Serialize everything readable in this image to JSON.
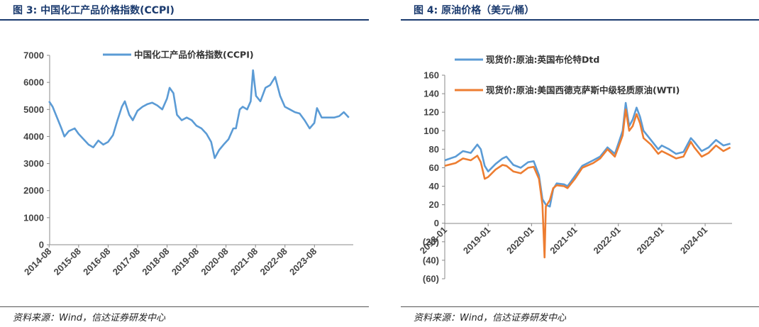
{
  "left_panel": {
    "figure_title": "图 3:  中国化工产品价格指数(CCPI)",
    "source": "资料来源：Wind，信达证券研发中心"
  },
  "right_panel": {
    "figure_title": "图 4:  原油价格（美元/桶）",
    "source": "资料来源：Wind，信达证券研发中心"
  },
  "chart_data": [
    {
      "type": "line",
      "title": "",
      "xlabel": "",
      "ylabel": "",
      "ylim": [
        0,
        7000
      ],
      "yticks": [
        "0",
        "1000",
        "2000",
        "3000",
        "4000",
        "5000",
        "6000",
        "7000"
      ],
      "xticks": [
        "2014-08",
        "2015-08",
        "2016-08",
        "2017-08",
        "2018-08",
        "2019-08",
        "2020-08",
        "2021-08",
        "2022-08",
        "2023-08"
      ],
      "xrange": [
        2014.6,
        2024.9
      ],
      "grid": false,
      "legend_position": "top-center",
      "series": [
        {
          "name": "中国化工产品价格指数(CCPI)",
          "color": "#5b9bd5",
          "points": [
            [
              2014.58,
              5300
            ],
            [
              2014.7,
              5100
            ],
            [
              2014.85,
              4700
            ],
            [
              2015.0,
              4300
            ],
            [
              2015.1,
              4000
            ],
            [
              2015.25,
              4200
            ],
            [
              2015.45,
              4300
            ],
            [
              2015.58,
              4100
            ],
            [
              2015.75,
              3900
            ],
            [
              2015.92,
              3700
            ],
            [
              2016.08,
              3600
            ],
            [
              2016.25,
              3850
            ],
            [
              2016.42,
              3700
            ],
            [
              2016.58,
              3800
            ],
            [
              2016.75,
              4050
            ],
            [
              2016.9,
              4600
            ],
            [
              2017.05,
              5100
            ],
            [
              2017.15,
              5300
            ],
            [
              2017.3,
              4800
            ],
            [
              2017.42,
              4600
            ],
            [
              2017.58,
              4950
            ],
            [
              2017.75,
              5100
            ],
            [
              2017.92,
              5200
            ],
            [
              2018.08,
              5250
            ],
            [
              2018.25,
              5150
            ],
            [
              2018.42,
              5000
            ],
            [
              2018.58,
              5400
            ],
            [
              2018.67,
              5800
            ],
            [
              2018.8,
              5600
            ],
            [
              2018.92,
              4800
            ],
            [
              2019.08,
              4600
            ],
            [
              2019.25,
              4700
            ],
            [
              2019.42,
              4600
            ],
            [
              2019.58,
              4400
            ],
            [
              2019.75,
              4300
            ],
            [
              2019.92,
              4100
            ],
            [
              2020.08,
              3800
            ],
            [
              2020.2,
              3200
            ],
            [
              2020.35,
              3500
            ],
            [
              2020.5,
              3700
            ],
            [
              2020.67,
              3900
            ],
            [
              2020.83,
              4300
            ],
            [
              2020.92,
              4300
            ],
            [
              2021.05,
              5000
            ],
            [
              2021.15,
              5100
            ],
            [
              2021.3,
              5000
            ],
            [
              2021.42,
              5300
            ],
            [
              2021.5,
              6450
            ],
            [
              2021.6,
              5500
            ],
            [
              2021.75,
              5300
            ],
            [
              2021.92,
              5800
            ],
            [
              2022.08,
              5900
            ],
            [
              2022.25,
              6200
            ],
            [
              2022.42,
              5500
            ],
            [
              2022.58,
              5100
            ],
            [
              2022.75,
              5000
            ],
            [
              2022.92,
              4900
            ],
            [
              2023.08,
              4850
            ],
            [
              2023.25,
              4600
            ],
            [
              2023.42,
              4300
            ],
            [
              2023.58,
              4500
            ],
            [
              2023.67,
              5050
            ],
            [
              2023.83,
              4700
            ],
            [
              2024.0,
              4700
            ],
            [
              2024.25,
              4700
            ],
            [
              2024.42,
              4750
            ],
            [
              2024.58,
              4900
            ],
            [
              2024.75,
              4700
            ]
          ]
        }
      ]
    },
    {
      "type": "line",
      "title": "",
      "xlabel": "",
      "ylabel": "",
      "ylim": [
        -60,
        160
      ],
      "yticks": [
        "(60)",
        "(40)",
        "(20)",
        "0",
        "20",
        "40",
        "60",
        "80",
        "100",
        "120",
        "140",
        "160"
      ],
      "negative_tick_color": "#ff0000",
      "xticks": [
        "2018-01",
        "2019-01",
        "2020-01",
        "2021-01",
        "2022-01",
        "2023-01",
        "2024-01"
      ],
      "xrange": [
        2018.0,
        2024.62
      ],
      "grid": false,
      "legend_position": "top-left",
      "series": [
        {
          "name": "现货价:原油:英国布伦特Dtd",
          "color": "#5b9bd5",
          "points": [
            [
              2018.0,
              68
            ],
            [
              2018.25,
              72
            ],
            [
              2018.42,
              78
            ],
            [
              2018.6,
              76
            ],
            [
              2018.75,
              85
            ],
            [
              2018.83,
              80
            ],
            [
              2018.92,
              62
            ],
            [
              2019.0,
              56
            ],
            [
              2019.17,
              64
            ],
            [
              2019.33,
              70
            ],
            [
              2019.42,
              72
            ],
            [
              2019.58,
              63
            ],
            [
              2019.75,
              60
            ],
            [
              2019.92,
              66
            ],
            [
              2020.05,
              67
            ],
            [
              2020.17,
              52
            ],
            [
              2020.25,
              26
            ],
            [
              2020.33,
              20
            ],
            [
              2020.42,
              18
            ],
            [
              2020.5,
              37
            ],
            [
              2020.58,
              43
            ],
            [
              2020.75,
              42
            ],
            [
              2020.83,
              40
            ],
            [
              2021.0,
              51
            ],
            [
              2021.17,
              62
            ],
            [
              2021.42,
              68
            ],
            [
              2021.58,
              72
            ],
            [
              2021.75,
              82
            ],
            [
              2021.92,
              75
            ],
            [
              2022.0,
              86
            ],
            [
              2022.1,
              100
            ],
            [
              2022.17,
              130
            ],
            [
              2022.25,
              105
            ],
            [
              2022.33,
              112
            ],
            [
              2022.42,
              125
            ],
            [
              2022.5,
              115
            ],
            [
              2022.58,
              100
            ],
            [
              2022.75,
              90
            ],
            [
              2022.92,
              80
            ],
            [
              2023.0,
              84
            ],
            [
              2023.17,
              80
            ],
            [
              2023.33,
              75
            ],
            [
              2023.5,
              77
            ],
            [
              2023.67,
              92
            ],
            [
              2023.75,
              88
            ],
            [
              2023.92,
              78
            ],
            [
              2024.08,
              82
            ],
            [
              2024.25,
              90
            ],
            [
              2024.42,
              84
            ],
            [
              2024.58,
              86
            ]
          ]
        },
        {
          "name": "现货价:原油:美国西德克萨斯中级轻质原油(WTI)",
          "color": "#ed7d31",
          "points": [
            [
              2018.0,
              62
            ],
            [
              2018.25,
              65
            ],
            [
              2018.42,
              70
            ],
            [
              2018.6,
              68
            ],
            [
              2018.75,
              73
            ],
            [
              2018.83,
              66
            ],
            [
              2018.92,
              48
            ],
            [
              2019.0,
              50
            ],
            [
              2019.17,
              58
            ],
            [
              2019.33,
              63
            ],
            [
              2019.42,
              62
            ],
            [
              2019.58,
              56
            ],
            [
              2019.75,
              54
            ],
            [
              2019.92,
              60
            ],
            [
              2020.05,
              61
            ],
            [
              2020.17,
              48
            ],
            [
              2020.25,
              20
            ],
            [
              2020.3,
              -37
            ],
            [
              2020.33,
              18
            ],
            [
              2020.42,
              25
            ],
            [
              2020.5,
              38
            ],
            [
              2020.58,
              41
            ],
            [
              2020.75,
              40
            ],
            [
              2020.83,
              38
            ],
            [
              2021.0,
              48
            ],
            [
              2021.17,
              60
            ],
            [
              2021.42,
              65
            ],
            [
              2021.58,
              70
            ],
            [
              2021.75,
              80
            ],
            [
              2021.92,
              72
            ],
            [
              2022.0,
              82
            ],
            [
              2022.1,
              95
            ],
            [
              2022.17,
              123
            ],
            [
              2022.25,
              100
            ],
            [
              2022.33,
              105
            ],
            [
              2022.42,
              118
            ],
            [
              2022.5,
              108
            ],
            [
              2022.58,
              92
            ],
            [
              2022.75,
              85
            ],
            [
              2022.92,
              75
            ],
            [
              2023.0,
              78
            ],
            [
              2023.17,
              74
            ],
            [
              2023.33,
              70
            ],
            [
              2023.5,
              72
            ],
            [
              2023.67,
              88
            ],
            [
              2023.75,
              82
            ],
            [
              2023.92,
              72
            ],
            [
              2024.08,
              76
            ],
            [
              2024.25,
              84
            ],
            [
              2024.42,
              78
            ],
            [
              2024.58,
              82
            ]
          ]
        }
      ]
    }
  ]
}
